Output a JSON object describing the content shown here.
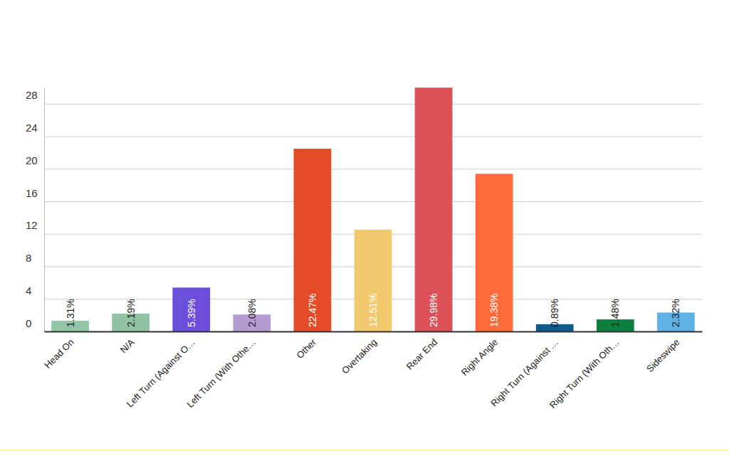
{
  "chart_data": {
    "type": "bar",
    "categories": [
      "Head On",
      "N/A",
      "Left Turn (Against O…",
      "Left Turn (With Othe…",
      "Other",
      "Overtaking",
      "Rear End",
      "Right Angle",
      "Right Turn (Against …",
      "Right Turn (With Oth…",
      "Sideswipe"
    ],
    "values": [
      1.31,
      2.19,
      5.39,
      2.08,
      22.47,
      12.51,
      29.98,
      19.38,
      0.89,
      1.48,
      2.32
    ],
    "value_labels": [
      "1.31%",
      "2.19%",
      "5.39%",
      "2.08%",
      "22.47%",
      "12.51%",
      "29.98%",
      "19.38%",
      "0.89%",
      "1.48%",
      "2.32%"
    ],
    "colors": [
      "#93c6a7",
      "#8fc3a3",
      "#6b4fdb",
      "#b49cd1",
      "#e34c26",
      "#f1c86b",
      "#db5157",
      "#fd6a3c",
      "#0f5b8c",
      "#0d8040",
      "#5fb2e5"
    ],
    "ylim": [
      0,
      30
    ],
    "yticks": [
      0,
      4,
      8,
      12,
      16,
      20,
      24,
      28
    ],
    "grid": true,
    "data_labels": true
  }
}
